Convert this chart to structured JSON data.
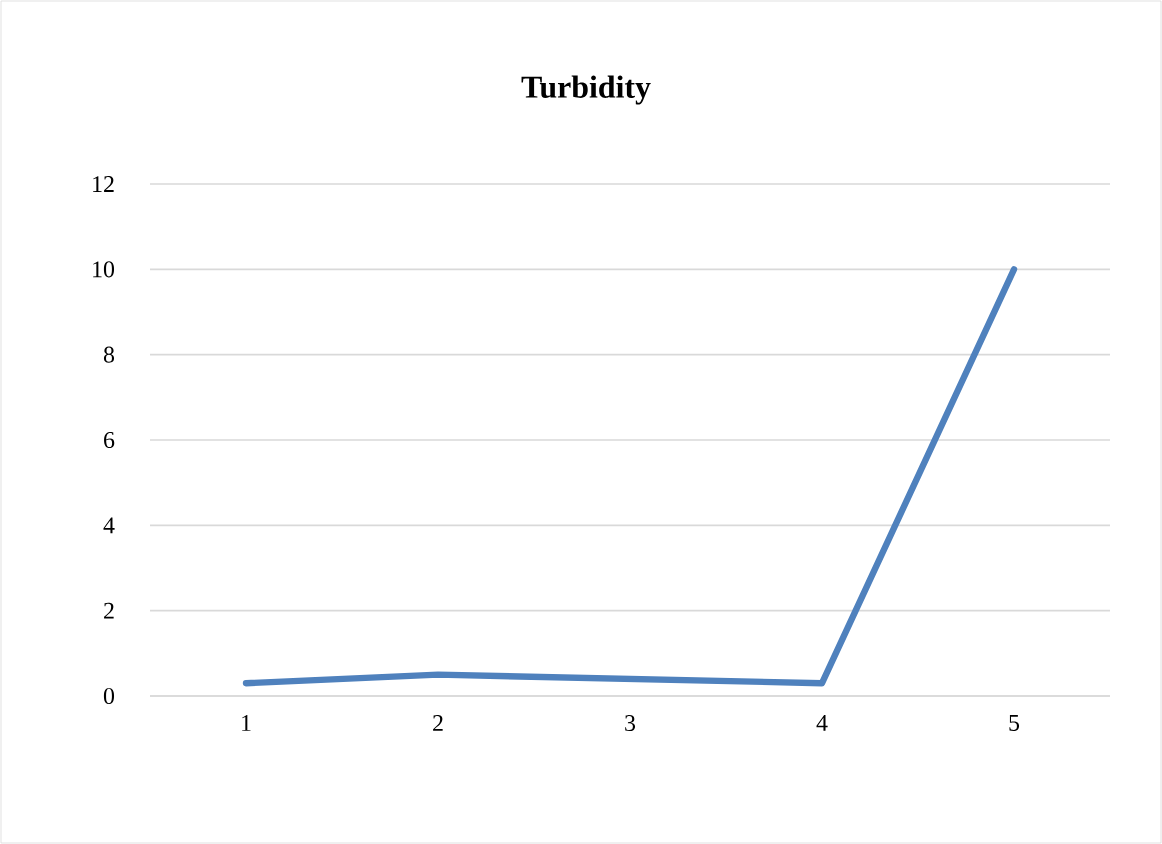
{
  "chart_data": {
    "type": "line",
    "title": "Turbidity",
    "categories": [
      "1",
      "2",
      "3",
      "4",
      "5"
    ],
    "series": [
      {
        "color": "#4f81bd",
        "values": [
          0.3,
          0.5,
          0.4,
          0.3,
          10
        ]
      }
    ],
    "ylim": [
      0,
      12
    ],
    "yticks": [
      0,
      2,
      4,
      6,
      8,
      10,
      12
    ],
    "grid": "y",
    "marker": "none",
    "line_style": "solid"
  }
}
